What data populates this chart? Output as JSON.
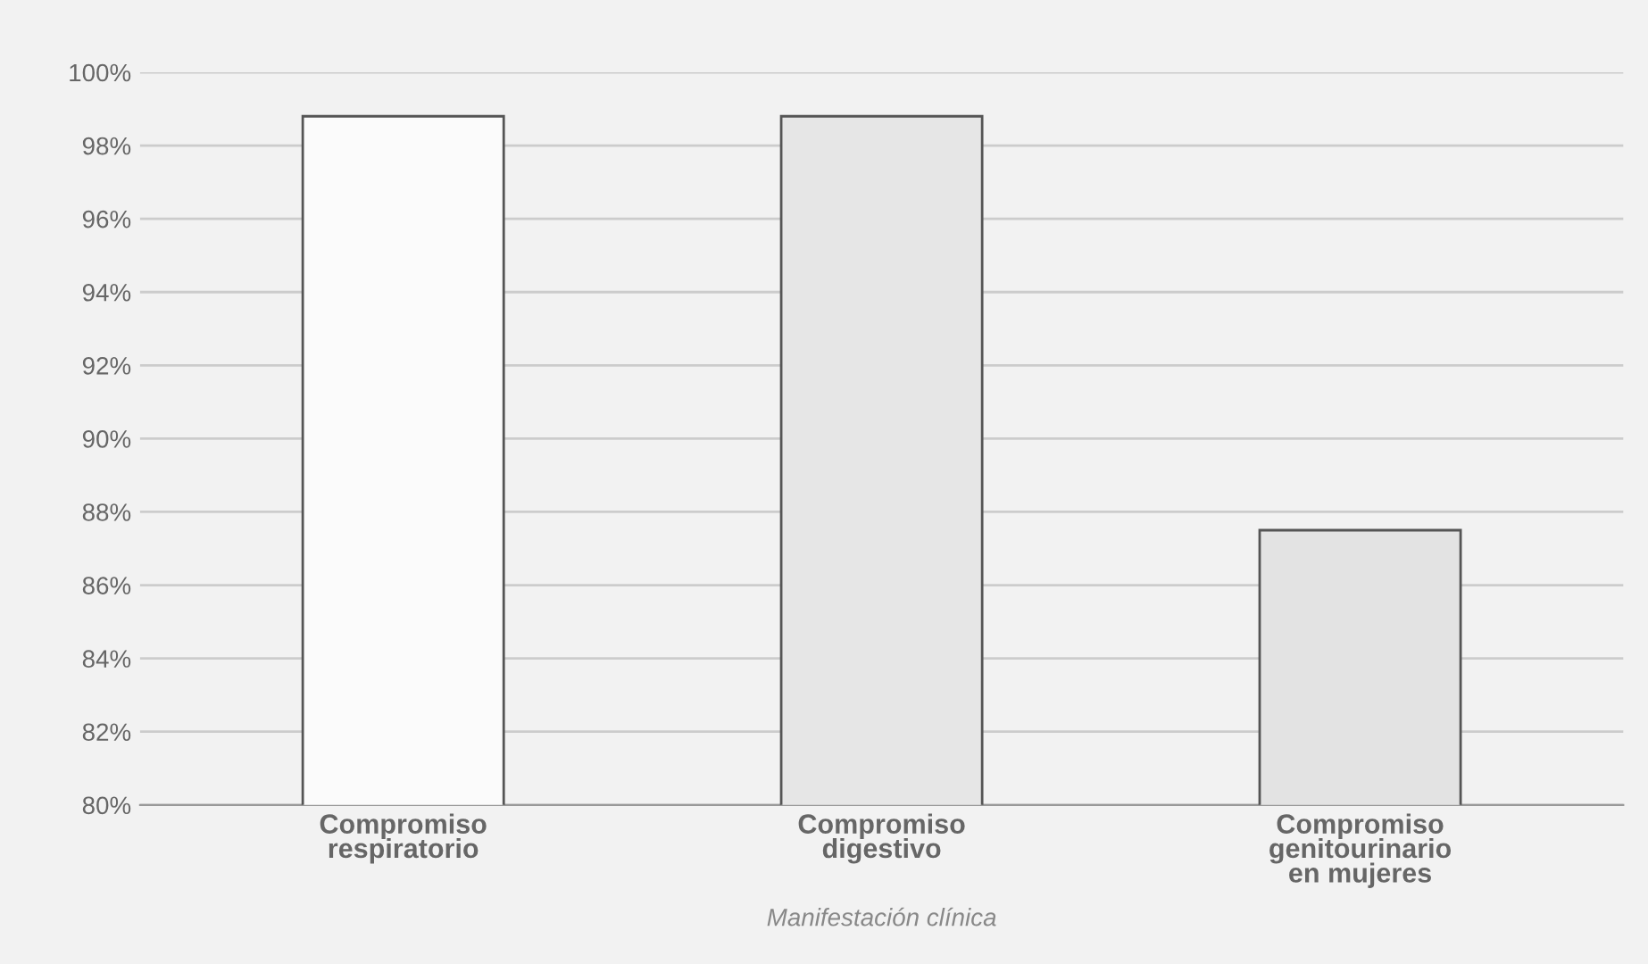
{
  "chart_data": {
    "type": "bar",
    "xlabel": "Manifestación clínica",
    "categories": [
      "Compromiso\nrespiratorio",
      "Compromiso\ndigestivo",
      "Compromiso\ngenitourinario\nen mujeres"
    ],
    "values": [
      98.8,
      98.8,
      87.5
    ],
    "colors": [
      "#fbfbfb",
      "#e6e6e6",
      "#e3e3e3"
    ],
    "ylim": [
      80,
      100
    ],
    "yticks": [
      {
        "value": 80,
        "label": "80%"
      },
      {
        "value": 82,
        "label": "82%"
      },
      {
        "value": 84,
        "label": "84%"
      },
      {
        "value": 86,
        "label": "86%"
      },
      {
        "value": 88,
        "label": "88%"
      },
      {
        "value": 90,
        "label": "90%"
      },
      {
        "value": 92,
        "label": "92%"
      },
      {
        "value": 94,
        "label": "94%"
      },
      {
        "value": 96,
        "label": "96%"
      },
      {
        "value": 98,
        "label": "98%"
      },
      {
        "value": 100,
        "label": "100%"
      }
    ],
    "grid": "y"
  }
}
